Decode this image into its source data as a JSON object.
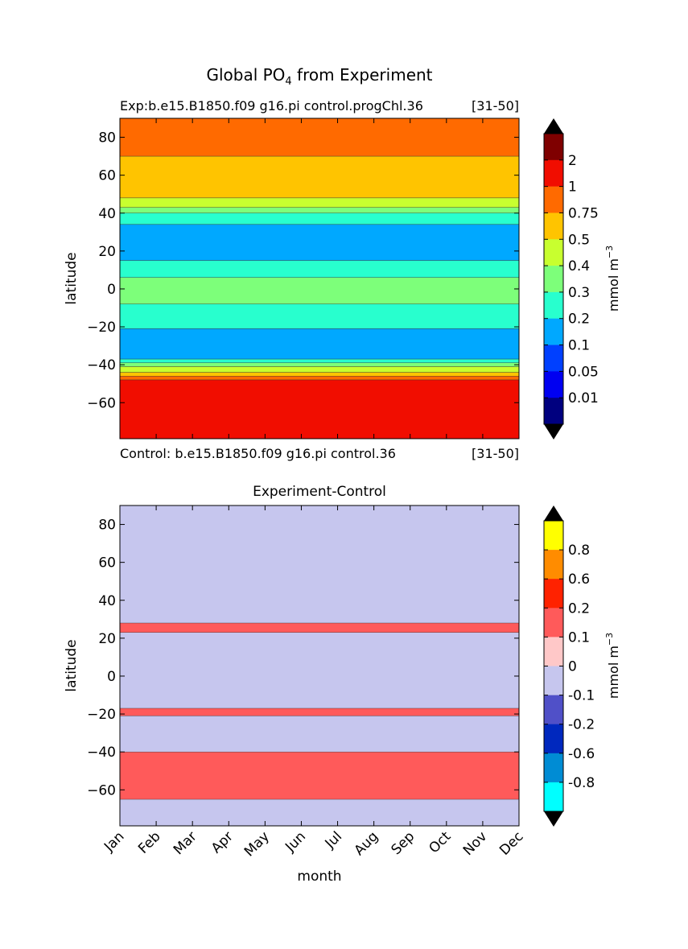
{
  "figure": {
    "title_main": "Global PO",
    "title_sub": "4",
    "title_rest": " from Experiment"
  },
  "chart_data": [
    {
      "type": "heatmap",
      "title_left": "Exp:b.e15.B1850.f09 g16.pi control.progChl.36",
      "title_right": "[31-50]",
      "bottom_left": "Control: b.e15.B1850.f09 g16.pi control.36",
      "bottom_right": "[31-50]",
      "xlabel": "",
      "ylabel": "latitude",
      "x": [
        "Jan",
        "Feb",
        "Mar",
        "Apr",
        "May",
        "Jun",
        "Jul",
        "Aug",
        "Sep",
        "Oct",
        "Nov",
        "Dec"
      ],
      "ylim": [
        -79,
        90
      ],
      "yticks": [
        "80",
        "60",
        "40",
        "20",
        "0",
        "−20",
        "−40",
        "−60"
      ],
      "ytick_values": [
        80,
        60,
        40,
        20,
        0,
        -20,
        -40,
        -60
      ],
      "bands": [
        {
          "lat_min": 70,
          "lat_max": 90,
          "value": 0.75
        },
        {
          "lat_min": 48,
          "lat_max": 70,
          "value": 0.5
        },
        {
          "lat_min": 43,
          "lat_max": 48,
          "value": 0.4
        },
        {
          "lat_min": 40,
          "lat_max": 43,
          "value": 0.3
        },
        {
          "lat_min": 34,
          "lat_max": 40,
          "value": 0.2
        },
        {
          "lat_min": 15,
          "lat_max": 34,
          "value": 0.1
        },
        {
          "lat_min": 6,
          "lat_max": 15,
          "value": 0.2
        },
        {
          "lat_min": -8,
          "lat_max": 6,
          "value": 0.3
        },
        {
          "lat_min": -21,
          "lat_max": -8,
          "value": 0.2
        },
        {
          "lat_min": -37,
          "lat_max": -21,
          "value": 0.1
        },
        {
          "lat_min": -39,
          "lat_max": -37,
          "value": 0.2
        },
        {
          "lat_min": -41,
          "lat_max": -39,
          "value": 0.3
        },
        {
          "lat_min": -44,
          "lat_max": -41,
          "value": 0.4
        },
        {
          "lat_min": -46,
          "lat_max": -44,
          "value": 0.5
        },
        {
          "lat_min": -48,
          "lat_max": -46,
          "value": 0.75
        },
        {
          "lat_min": -79,
          "lat_max": -48,
          "value": 1
        }
      ],
      "colorbar": {
        "label": "mmol m",
        "label_sup": "−3",
        "labels": [
          "2",
          "1",
          "0.75",
          "0.5",
          "0.4",
          "0.3",
          "0.2",
          "0.1",
          "0.05",
          "0.01"
        ],
        "colors": [
          "#7f0000",
          "#f10d00",
          "#ff6a00",
          "#ffc400",
          "#c8ff2f",
          "#7dff7a",
          "#28ffce",
          "#00a8ff",
          "#0040ff",
          "#0000f1",
          "#00007f"
        ],
        "extend_low_color": "#000000",
        "extend_high_color": "#000000"
      }
    },
    {
      "type": "heatmap",
      "title": "Experiment-Control",
      "xlabel": "month",
      "ylabel": "latitude",
      "x": [
        "Jan",
        "Feb",
        "Mar",
        "Apr",
        "May",
        "Jun",
        "Jul",
        "Aug",
        "Sep",
        "Oct",
        "Nov",
        "Dec"
      ],
      "ylim": [
        -79,
        90
      ],
      "yticks": [
        "80",
        "60",
        "40",
        "20",
        "0",
        "−20",
        "−40",
        "−60"
      ],
      "ytick_values": [
        80,
        60,
        40,
        20,
        0,
        -20,
        -40,
        -60
      ],
      "background_value": -0.1,
      "bands": [
        {
          "lat_min": 23,
          "lat_max": 28,
          "value": 0.1
        },
        {
          "lat_min": -21,
          "lat_max": -17,
          "value": 0.1
        },
        {
          "lat_min": -65,
          "lat_max": -40,
          "value": 0.1
        }
      ],
      "colorbar": {
        "label": "mmol m",
        "label_sup": "−3",
        "labels": [
          "0.8",
          "0.6",
          "0.2",
          "0.1",
          "0",
          "-0.1",
          "-0.2",
          "-0.6",
          "-0.8"
        ],
        "colors": [
          "#ffff00",
          "#ff8c00",
          "#ff2200",
          "#ff5a5a",
          "#ffc8c8",
          "#c6c6ee",
          "#5050c8",
          "#0028be",
          "#008cd4",
          "#00ffff"
        ],
        "extend_low_color": "#000000",
        "extend_high_color": "#000000"
      }
    }
  ]
}
